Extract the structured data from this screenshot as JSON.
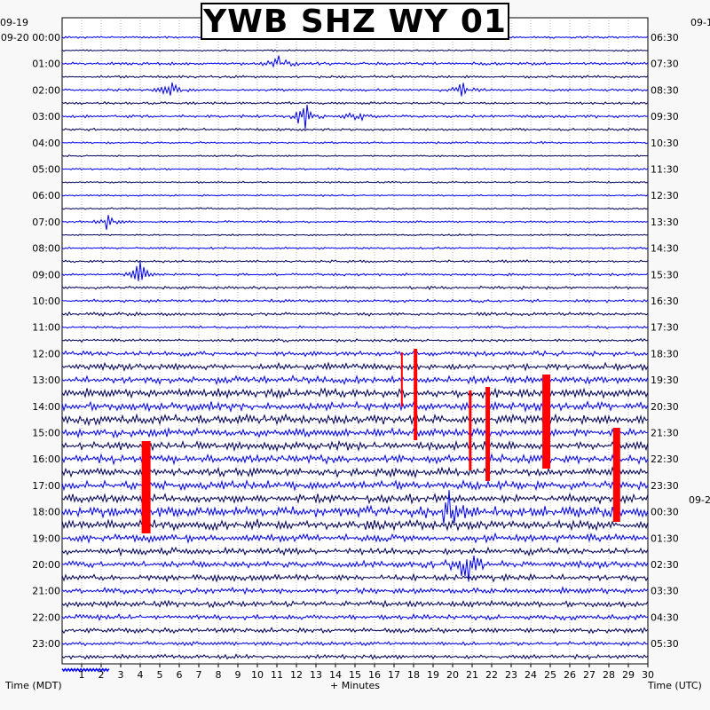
{
  "chart_data": {
    "type": "line",
    "title": "YWB SHZ WY 01",
    "xlabel": "+ Minutes",
    "ylabel_left": "Time (MDT)",
    "ylabel_right": "Time (UTC)",
    "date_left_start": "09-19",
    "date_left": "09-20",
    "date_right": "09-2",
    "xlim": [
      0,
      30
    ],
    "x_ticks": [
      "1",
      "2",
      "3",
      "4",
      "5",
      "6",
      "7",
      "8",
      "9",
      "10",
      "11",
      "12",
      "13",
      "14",
      "15",
      "16",
      "17",
      "18",
      "19",
      "20",
      "21",
      "22",
      "23",
      "24",
      "25",
      "26",
      "27",
      "28",
      "29",
      "30"
    ],
    "rows_per_hour": 2,
    "left_hour_labels": [
      "00:00",
      "01:00",
      "02:00",
      "03:00",
      "04:00",
      "05:00",
      "06:00",
      "07:00",
      "08:00",
      "09:00",
      "10:00",
      "11:00",
      "12:00",
      "13:00",
      "14:00",
      "15:00",
      "16:00",
      "17:00",
      "18:00",
      "19:00",
      "20:00",
      "21:00",
      "22:00",
      "23:00"
    ],
    "right_hour_labels": [
      "06:30",
      "07:30",
      "08:30",
      "09:30",
      "10:30",
      "11:30",
      "12:30",
      "13:30",
      "14:30",
      "15:30",
      "16:30",
      "17:30",
      "18:30",
      "19:30",
      "20:30",
      "21:30",
      "22:30",
      "23:30",
      "00:30",
      "01:30",
      "02:30",
      "03:30",
      "04:30",
      "05:30"
    ],
    "trace_colors": [
      "#0000ff",
      "#00005a"
    ],
    "clip_color": "#ff0000",
    "row_amplitude": [
      0.25,
      0.2,
      0.35,
      0.3,
      0.3,
      0.3,
      0.35,
      0.3,
      0.25,
      0.2,
      0.25,
      0.2,
      0.2,
      0.2,
      0.25,
      0.2,
      0.25,
      0.3,
      0.3,
      0.35,
      0.35,
      0.4,
      0.3,
      0.35,
      0.6,
      0.8,
      0.9,
      1.0,
      1.0,
      1.1,
      1.0,
      1.0,
      1.0,
      1.0,
      1.0,
      1.0,
      1.2,
      1.2,
      0.9,
      0.8,
      0.8,
      0.8,
      0.7,
      0.7,
      0.6,
      0.6,
      0.5,
      0.5
    ],
    "events": [
      {
        "row": 2,
        "minute": 11.0,
        "size": 1.5
      },
      {
        "row": 4,
        "minute": 5.6,
        "size": 1.2
      },
      {
        "row": 4,
        "minute": 20.5,
        "size": 1.1
      },
      {
        "row": 6,
        "minute": 12.4,
        "size": 2.2
      },
      {
        "row": 6,
        "minute": 15.0,
        "size": 1.3
      },
      {
        "row": 14,
        "minute": 2.3,
        "size": 1.1
      },
      {
        "row": 18,
        "minute": 4.0,
        "size": 1.8
      },
      {
        "row": 36,
        "minute": 19.8,
        "size": 4.0
      },
      {
        "row": 40,
        "minute": 20.7,
        "size": 3.5
      }
    ],
    "clips": [
      {
        "minute": 4.3,
        "y_top": 497,
        "y_bottom": 601,
        "width": 10
      },
      {
        "minute": 17.4,
        "y_top": 397,
        "y_bottom": 458,
        "width": 2
      },
      {
        "minute": 18.1,
        "y_top": 393,
        "y_bottom": 496,
        "width": 4
      },
      {
        "minute": 20.9,
        "y_top": 440,
        "y_bottom": 530,
        "width": 3
      },
      {
        "minute": 21.8,
        "y_top": 436,
        "y_bottom": 542,
        "width": 5
      },
      {
        "minute": 24.8,
        "y_top": 422,
        "y_bottom": 528,
        "width": 9
      },
      {
        "minute": 28.4,
        "y_top": 482,
        "y_bottom": 588,
        "width": 8
      }
    ],
    "last_trace_minutes": 2.4
  }
}
